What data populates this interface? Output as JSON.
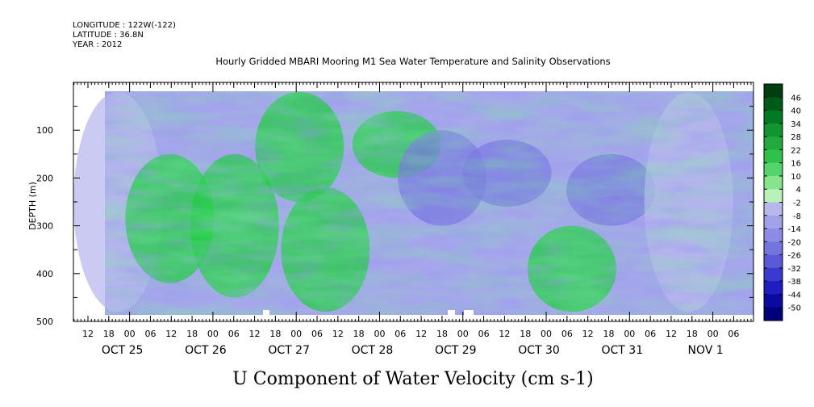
{
  "header": {
    "longitude": "LONGITUDE : 122W(-122)",
    "latitude": "LATITUDE : 36.8N",
    "year": "YEAR : 2012"
  },
  "chart_data": {
    "type": "heatmap",
    "title": "Hourly Gridded MBARI Mooring M1 Sea Water Temperature and Salinity Observations",
    "xlabel": "U Component of Water Velocity (cm s-1)",
    "ylabel": "DEPTH (m)",
    "ylim": [
      500,
      0
    ],
    "y_inverted": true,
    "y_ticks": [
      100,
      200,
      300,
      400,
      500
    ],
    "y_tick_labels": [
      "100",
      "200",
      "300",
      "400",
      "500"
    ],
    "x_hour_ticks": [
      "12",
      "18",
      "00",
      "06",
      "12",
      "18",
      "00",
      "06",
      "12",
      "18",
      "00",
      "06",
      "12",
      "18",
      "00",
      "06",
      "12",
      "18",
      "00",
      "06",
      "12",
      "18",
      "00",
      "06",
      "12",
      "18",
      "00",
      "06",
      "12",
      "18",
      "00",
      "06"
    ],
    "x_date_labels": [
      "OCT 25",
      "OCT 26",
      "OCT 27",
      "OCT 28",
      "OCT 29",
      "OCT 30",
      "OCT 31",
      "NOV  1"
    ],
    "colorbar": {
      "levels": [
        "46",
        "40",
        "34",
        "28",
        "22",
        "16",
        "10",
        "4",
        "-2",
        "-8",
        "-14",
        "-20",
        "-26",
        "-32",
        "-38",
        "-44",
        "-50"
      ],
      "min": -50,
      "max": 52
    },
    "approximate_field": [
      {
        "time_frac": 0.02,
        "depth_range": [
          20,
          480
        ],
        "value": -6
      },
      {
        "time_frac": 0.1,
        "depth_range": [
          150,
          420
        ],
        "value": 12
      },
      {
        "time_frac": 0.2,
        "depth_range": [
          150,
          450
        ],
        "value": 16
      },
      {
        "time_frac": 0.3,
        "depth_range": [
          20,
          250
        ],
        "value": 18
      },
      {
        "time_frac": 0.34,
        "depth_range": [
          220,
          480
        ],
        "value": 14
      },
      {
        "time_frac": 0.45,
        "depth_range": [
          60,
          200
        ],
        "value": 10
      },
      {
        "time_frac": 0.52,
        "depth_range": [
          100,
          300
        ],
        "value": -14
      },
      {
        "time_frac": 0.62,
        "depth_range": [
          120,
          260
        ],
        "value": -16
      },
      {
        "time_frac": 0.72,
        "depth_range": [
          300,
          480
        ],
        "value": 10
      },
      {
        "time_frac": 0.78,
        "depth_range": [
          150,
          300
        ],
        "value": -20
      },
      {
        "time_frac": 0.9,
        "depth_range": [
          20,
          480
        ],
        "value": -6
      }
    ]
  },
  "colors": {
    "positive_dark": "#003e10",
    "positive_mid": "#22cc44",
    "positive_light": "#b8f2b8",
    "negative_light": "#b8b8ee",
    "negative_mid": "#7878e0",
    "negative_dark": "#00007a"
  }
}
